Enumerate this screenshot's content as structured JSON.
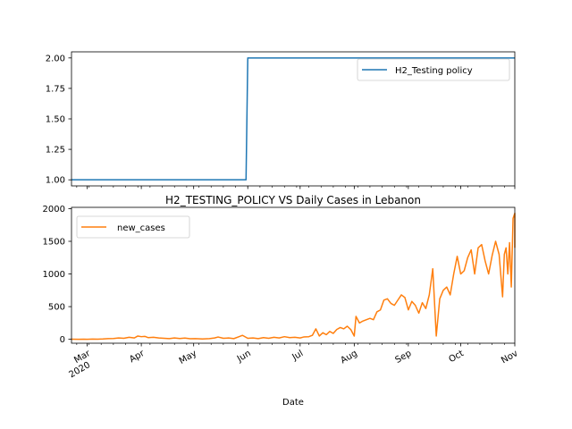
{
  "figure": {
    "title": "H2_TESTING_POLICY VS Daily Cases in Lebanon",
    "xlabel": "Date",
    "year_label": "2020"
  },
  "chart_data": [
    {
      "type": "line",
      "title": "",
      "xlabel": "",
      "ylabel": "",
      "x_range": [
        "2020-02-21",
        "2020-11-01"
      ],
      "ylim": [
        0.95,
        2.05
      ],
      "yticks": [
        "1.00",
        "1.25",
        "1.50",
        "1.75",
        "2.00"
      ],
      "legend_position": "upper right",
      "grid": false,
      "series": [
        {
          "name": "H2_Testing policy",
          "color": "#1f77b4",
          "points": [
            [
              "2020-02-21",
              1.0
            ],
            [
              "2020-05-31",
              1.0
            ],
            [
              "2020-06-01",
              2.0
            ],
            [
              "2020-11-01",
              2.0
            ]
          ]
        }
      ]
    },
    {
      "type": "line",
      "title": "H2_TESTING_POLICY VS Daily Cases in Lebanon",
      "xlabel": "Date",
      "ylabel": "",
      "x_range": [
        "2020-02-21",
        "2020-11-01"
      ],
      "ylim": [
        -60,
        2020
      ],
      "yticks": [
        "0",
        "500",
        "1000",
        "1500",
        "2000"
      ],
      "xticks": [
        "Mar",
        "Apr",
        "May",
        "Jun",
        "Jul",
        "Aug",
        "Sep",
        "Oct",
        "Nov"
      ],
      "legend_position": "upper left",
      "grid": false,
      "series": [
        {
          "name": "new_cases",
          "color": "#ff7f0e",
          "points": [
            [
              "2020-02-21",
              1
            ],
            [
              "2020-02-25",
              0
            ],
            [
              "2020-02-28",
              1
            ],
            [
              "2020-03-01",
              0
            ],
            [
              "2020-03-04",
              3
            ],
            [
              "2020-03-07",
              2
            ],
            [
              "2020-03-10",
              5
            ],
            [
              "2020-03-13",
              10
            ],
            [
              "2020-03-16",
              12
            ],
            [
              "2020-03-19",
              20
            ],
            [
              "2020-03-22",
              15
            ],
            [
              "2020-03-25",
              30
            ],
            [
              "2020-03-28",
              20
            ],
            [
              "2020-03-30",
              50
            ],
            [
              "2020-04-01",
              40
            ],
            [
              "2020-04-03",
              45
            ],
            [
              "2020-04-05",
              25
            ],
            [
              "2020-04-08",
              30
            ],
            [
              "2020-04-11",
              20
            ],
            [
              "2020-04-14",
              15
            ],
            [
              "2020-04-17",
              10
            ],
            [
              "2020-04-20",
              20
            ],
            [
              "2020-04-23",
              12
            ],
            [
              "2020-04-26",
              18
            ],
            [
              "2020-04-29",
              8
            ],
            [
              "2020-05-02",
              10
            ],
            [
              "2020-05-06",
              5
            ],
            [
              "2020-05-10",
              10
            ],
            [
              "2020-05-13",
              20
            ],
            [
              "2020-05-15",
              35
            ],
            [
              "2020-05-18",
              15
            ],
            [
              "2020-05-21",
              20
            ],
            [
              "2020-05-24",
              10
            ],
            [
              "2020-05-27",
              40
            ],
            [
              "2020-05-29",
              60
            ],
            [
              "2020-06-01",
              15
            ],
            [
              "2020-06-04",
              20
            ],
            [
              "2020-06-07",
              10
            ],
            [
              "2020-06-10",
              25
            ],
            [
              "2020-06-13",
              15
            ],
            [
              "2020-06-16",
              30
            ],
            [
              "2020-06-19",
              20
            ],
            [
              "2020-06-22",
              40
            ],
            [
              "2020-06-25",
              25
            ],
            [
              "2020-06-28",
              30
            ],
            [
              "2020-07-01",
              20
            ],
            [
              "2020-07-03",
              35
            ],
            [
              "2020-07-06",
              40
            ],
            [
              "2020-07-08",
              60
            ],
            [
              "2020-07-10",
              160
            ],
            [
              "2020-07-12",
              50
            ],
            [
              "2020-07-14",
              100
            ],
            [
              "2020-07-16",
              70
            ],
            [
              "2020-07-18",
              120
            ],
            [
              "2020-07-20",
              90
            ],
            [
              "2020-07-22",
              150
            ],
            [
              "2020-07-24",
              180
            ],
            [
              "2020-07-26",
              160
            ],
            [
              "2020-07-28",
              200
            ],
            [
              "2020-07-30",
              150
            ],
            [
              "2020-08-01",
              50
            ],
            [
              "2020-08-02",
              350
            ],
            [
              "2020-08-04",
              250
            ],
            [
              "2020-08-06",
              280
            ],
            [
              "2020-08-08",
              300
            ],
            [
              "2020-08-10",
              320
            ],
            [
              "2020-08-12",
              300
            ],
            [
              "2020-08-14",
              420
            ],
            [
              "2020-08-16",
              450
            ],
            [
              "2020-08-18",
              600
            ],
            [
              "2020-08-20",
              620
            ],
            [
              "2020-08-22",
              550
            ],
            [
              "2020-08-24",
              520
            ],
            [
              "2020-08-26",
              600
            ],
            [
              "2020-08-28",
              680
            ],
            [
              "2020-08-30",
              640
            ],
            [
              "2020-09-01",
              450
            ],
            [
              "2020-09-03",
              580
            ],
            [
              "2020-09-05",
              520
            ],
            [
              "2020-09-07",
              400
            ],
            [
              "2020-09-09",
              560
            ],
            [
              "2020-09-11",
              470
            ],
            [
              "2020-09-13",
              680
            ],
            [
              "2020-09-15",
              1080
            ],
            [
              "2020-09-17",
              50
            ],
            [
              "2020-09-19",
              620
            ],
            [
              "2020-09-21",
              750
            ],
            [
              "2020-09-23",
              800
            ],
            [
              "2020-09-25",
              680
            ],
            [
              "2020-09-27",
              1000
            ],
            [
              "2020-09-29",
              1270
            ],
            [
              "2020-10-01",
              1000
            ],
            [
              "2020-10-03",
              1050
            ],
            [
              "2020-10-05",
              1250
            ],
            [
              "2020-10-07",
              1370
            ],
            [
              "2020-10-09",
              1000
            ],
            [
              "2020-10-11",
              1400
            ],
            [
              "2020-10-13",
              1450
            ],
            [
              "2020-10-15",
              1200
            ],
            [
              "2020-10-17",
              1000
            ],
            [
              "2020-10-19",
              1280
            ],
            [
              "2020-10-21",
              1500
            ],
            [
              "2020-10-23",
              1300
            ],
            [
              "2020-10-25",
              650
            ],
            [
              "2020-10-26",
              1300
            ],
            [
              "2020-10-27",
              1400
            ],
            [
              "2020-10-28",
              1000
            ],
            [
              "2020-10-29",
              1480
            ],
            [
              "2020-10-30",
              800
            ],
            [
              "2020-10-31",
              1850
            ],
            [
              "2020-11-01",
              1930
            ],
            [
              "2020-11-01",
              1400
            ]
          ]
        }
      ]
    }
  ]
}
